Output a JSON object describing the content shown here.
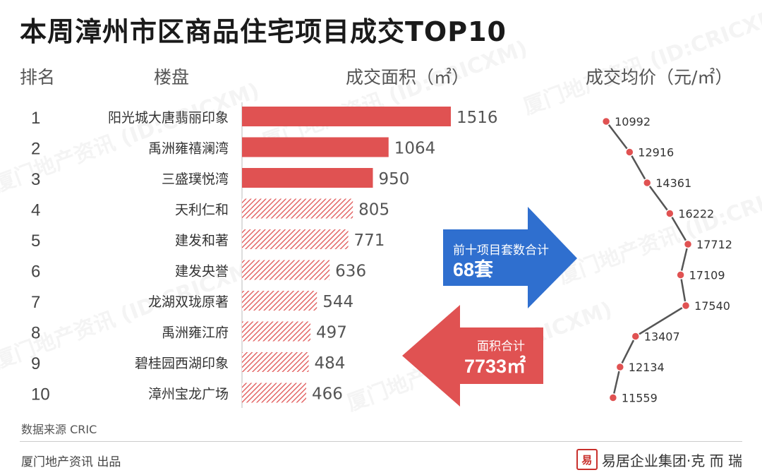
{
  "title": "本周漳州市区商品住宅项目成交TOP10",
  "headers": {
    "rank": "排名",
    "project": "楼盘",
    "area": "成交面积（㎡）",
    "price": "成交均价（元/㎡）"
  },
  "colors": {
    "bar_red": "#e05252",
    "price_line": "#555555",
    "price_dot": "#e05252",
    "arrow_blue": "#2f6fcf",
    "arrow_red": "#e05252"
  },
  "chart_data": {
    "type": "bar",
    "categories": [
      "阳光城大唐翡丽印象",
      "禹洲雍禧澜湾",
      "三盛璞悦湾",
      "天利仁和",
      "建发和著",
      "建发央誉",
      "龙湖双珑原著",
      "禹洲雍江府",
      "碧桂园西湖印象",
      "漳州宝龙广场"
    ],
    "ranks": [
      "1",
      "2",
      "3",
      "4",
      "5",
      "6",
      "7",
      "8",
      "9",
      "10"
    ],
    "series": [
      {
        "name": "成交面积（㎡）",
        "values": [
          1516,
          1064,
          950,
          805,
          771,
          636,
          544,
          497,
          484,
          466
        ]
      },
      {
        "name": "成交均价（元/㎡）",
        "values": [
          10992,
          12916,
          14361,
          16222,
          17712,
          17109,
          17540,
          13407,
          12134,
          11559
        ]
      }
    ],
    "bar_styles": [
      "solid",
      "solid",
      "solid",
      "hatched",
      "hatched",
      "hatched",
      "hatched",
      "hatched",
      "hatched",
      "hatched"
    ],
    "xlabel": "",
    "ylabel": ""
  },
  "callouts": {
    "total_units_label": "前十项目套数合计",
    "total_units_value": "68套",
    "total_area_label": "面积合计",
    "total_area_value": "7733㎡"
  },
  "footer": {
    "source": "数据来源  CRIC",
    "producer": "厦门地产资讯  出品",
    "brand": "易居企业集团·克 而 瑞",
    "seal_char": "易"
  },
  "watermark": "厦门地产资讯 (ID:CRICXM)"
}
